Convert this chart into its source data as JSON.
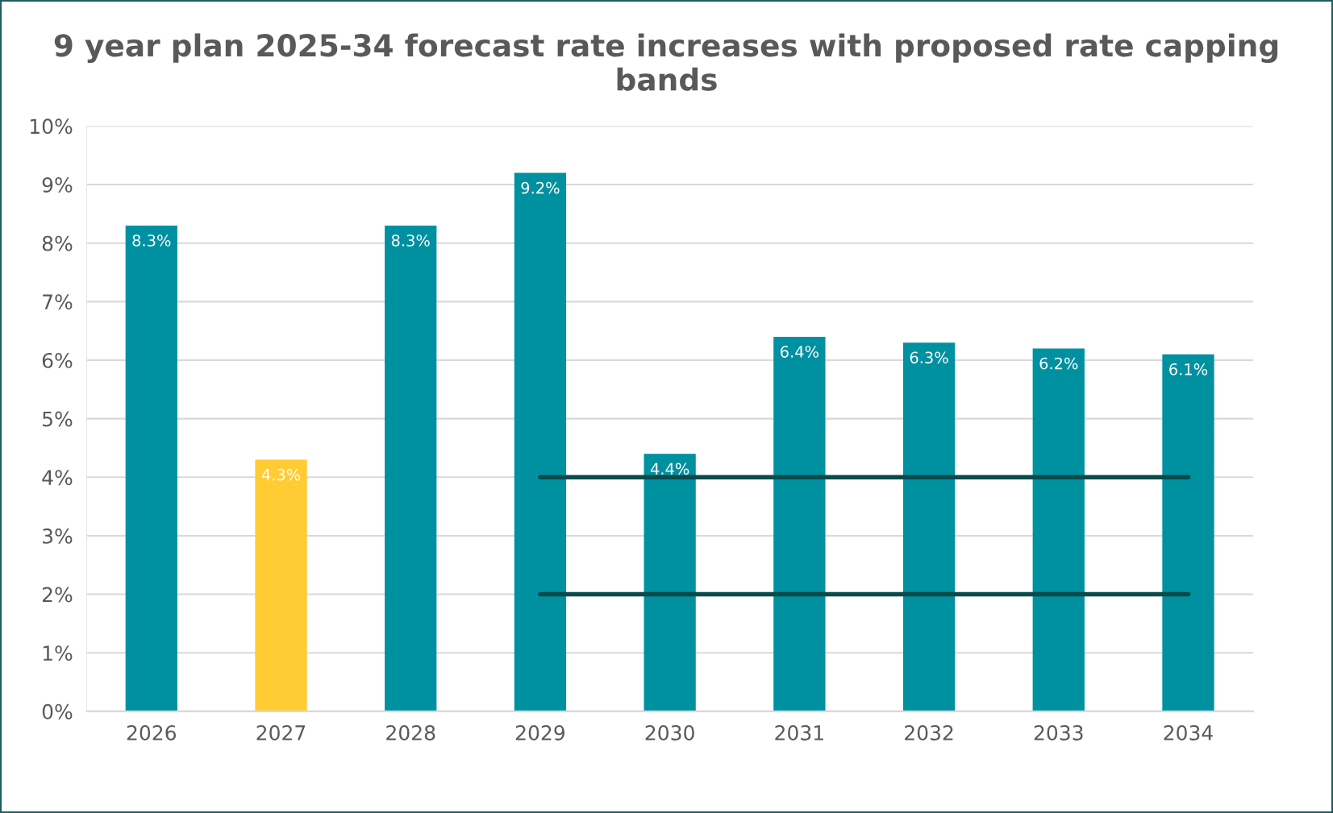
{
  "chart_data": {
    "type": "bar",
    "title": "9 year plan 2025-34 forecast rate increases with proposed rate capping bands",
    "categories": [
      "2026",
      "2027",
      "2028",
      "2029",
      "2030",
      "2031",
      "2032",
      "2033",
      "2034"
    ],
    "series": [
      {
        "values": [
          8.3,
          4.3,
          8.3,
          9.2,
          4.4,
          6.4,
          6.3,
          6.2,
          6.1
        ],
        "colors": [
          "#0091a1",
          "#ffcc33",
          "#0091a1",
          "#0091a1",
          "#0091a1",
          "#0091a1",
          "#0091a1",
          "#0091a1",
          "#0091a1"
        ],
        "value_labels": [
          "8.3%",
          "4.3%",
          "8.3%",
          "9.2%",
          "4.4%",
          "6.4%",
          "6.3%",
          "6.2%",
          "6.1%"
        ]
      },
      {
        "type": "line",
        "color": "#0b4a4a",
        "values": [
          null,
          null,
          null,
          4,
          4,
          4,
          4,
          4,
          4
        ]
      },
      {
        "type": "line",
        "color": "#0b4a4a",
        "values": [
          null,
          null,
          null,
          2,
          2,
          2,
          2,
          2,
          2
        ]
      }
    ],
    "ylim": [
      0,
      10
    ],
    "yticks": [
      {
        "value": 0,
        "label": "0%"
      },
      {
        "value": 1,
        "label": "1%"
      },
      {
        "value": 2,
        "label": "2%"
      },
      {
        "value": 3,
        "label": "3%"
      },
      {
        "value": 4,
        "label": "4%"
      },
      {
        "value": 5,
        "label": "5%"
      },
      {
        "value": 6,
        "label": "6%"
      },
      {
        "value": 7,
        "label": "7%"
      },
      {
        "value": 8,
        "label": "8%"
      },
      {
        "value": 9,
        "label": "9%"
      },
      {
        "value": 10,
        "label": "10%"
      }
    ],
    "grid": "y"
  }
}
